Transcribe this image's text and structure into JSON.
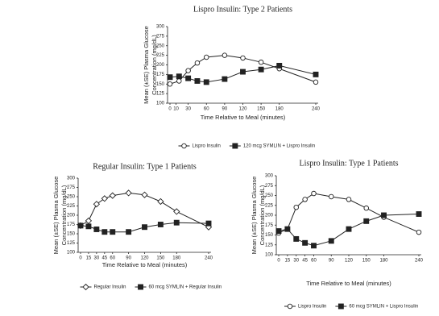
{
  "chart_data": [
    {
      "type": "line",
      "title": "Lispro Insulin:  Type 2 Patients",
      "ylabel": [
        "Mean (±SE) Plasma Glucose",
        "Concentration (mg/dL)"
      ],
      "xlabel": "Time Relative to Meal (minutes)",
      "x": [
        0,
        15,
        30,
        45,
        60,
        90,
        120,
        150,
        180,
        240
      ],
      "xlim": [
        0,
        240
      ],
      "xticks": [
        0,
        10,
        30,
        60,
        90,
        120,
        150,
        180,
        240
      ],
      "ylim": [
        100,
        300
      ],
      "yticks": [
        100,
        125,
        150,
        175,
        200,
        225,
        250,
        275,
        300
      ],
      "series": [
        {
          "name": "Lispro Insulin",
          "color": "#222222",
          "marker": "circle",
          "fill": "#ffffff",
          "values": [
            150,
            158,
            185,
            205,
            220,
            225,
            218,
            207,
            190,
            155
          ]
        },
        {
          "name": "120 mcg SYMLIN + Lispro Insulin",
          "color": "#222222",
          "marker": "square",
          "fill": "#222222",
          "values": [
            168,
            170,
            165,
            158,
            155,
            163,
            182,
            188,
            198,
            175
          ]
        }
      ]
    },
    {
      "type": "line",
      "title": "Regular Insulin:  Type 1 Patients",
      "ylabel": [
        "Mean (±SE) Plasma Glucose",
        "Concentration (mg/dL)"
      ],
      "xlabel": "Time Relative to Meal (minutes)",
      "x": [
        0,
        15,
        30,
        45,
        60,
        90,
        120,
        150,
        180,
        240
      ],
      "xlim": [
        0,
        240
      ],
      "xticks": [
        0,
        15,
        30,
        45,
        60,
        90,
        120,
        150,
        180,
        240
      ],
      "ylim": [
        100,
        300
      ],
      "yticks": [
        100,
        125,
        150,
        175,
        200,
        225,
        250,
        275,
        300
      ],
      "series": [
        {
          "name": "Regular Insulin",
          "color": "#222222",
          "marker": "diamond",
          "fill": "#ffffff",
          "values": [
            172,
            185,
            230,
            245,
            253,
            260,
            255,
            237,
            210,
            168
          ]
        },
        {
          "name": "60 mcg SYMLIN + Regular Insulin",
          "color": "#222222",
          "marker": "square",
          "fill": "#222222",
          "values": [
            172,
            170,
            162,
            155,
            155,
            155,
            168,
            175,
            180,
            178
          ]
        }
      ]
    },
    {
      "type": "line",
      "title": "Lispro Insulin:  Type 1 Patients",
      "ylabel": [
        "Mean (±SE) Plasma Glucose",
        "Concentration (mg/dL)"
      ],
      "xlabel": "Time Relative to Meal (minutes)",
      "x": [
        0,
        15,
        30,
        45,
        60,
        90,
        120,
        150,
        180,
        240
      ],
      "xlim": [
        0,
        240
      ],
      "xticks": [
        0,
        15,
        30,
        45,
        60,
        90,
        120,
        150,
        180,
        240
      ],
      "ylim": [
        100,
        300
      ],
      "yticks": [
        100,
        125,
        150,
        175,
        200,
        225,
        250,
        275,
        300
      ],
      "series": [
        {
          "name": "Lispro Insulin",
          "color": "#222222",
          "marker": "circle",
          "fill": "#ffffff",
          "values": [
            155,
            165,
            220,
            240,
            255,
            247,
            240,
            218,
            195,
            157
          ]
        },
        {
          "name": "60 mcg SYMLIN + Lispro Insulin",
          "color": "#222222",
          "marker": "square",
          "fill": "#222222",
          "values": [
            160,
            165,
            140,
            130,
            123,
            135,
            165,
            185,
            200,
            203
          ]
        }
      ]
    }
  ]
}
